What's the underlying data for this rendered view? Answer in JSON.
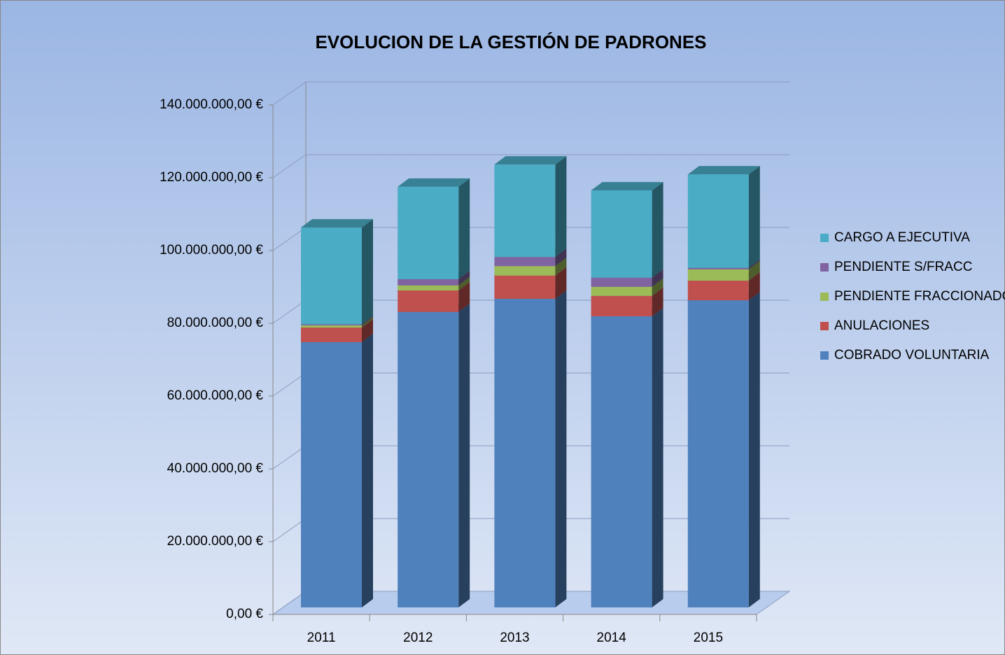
{
  "chart_data": {
    "type": "bar3d_stacked",
    "title": "EVOLUCION DE LA GESTIÓN DE PADRONES",
    "categories": [
      "2011",
      "2012",
      "2013",
      "2014",
      "2015"
    ],
    "series": [
      {
        "name": "COBRADO VOLUNTARIA",
        "color": "#4f81bd",
        "values": [
          72900000,
          81200000,
          84800000,
          80000000,
          84400000
        ]
      },
      {
        "name": "ANULACIONES",
        "color": "#c0504d",
        "values": [
          4000000,
          5900000,
          6400000,
          5600000,
          5400000
        ]
      },
      {
        "name": "PENDIENTE FRACCIONADO",
        "color": "#9bbb59",
        "values": [
          600000,
          1400000,
          2600000,
          2500000,
          3100000
        ]
      },
      {
        "name": "PENDIENTE S/FRACC",
        "color": "#8064a2",
        "values": [
          300000,
          1700000,
          2500000,
          2500000,
          400000
        ]
      },
      {
        "name": "CARGO A EJECUTIVA",
        "color": "#4bacc6",
        "values": [
          26600000,
          25400000,
          25400000,
          24000000,
          25700000
        ]
      }
    ],
    "ylim": [
      0,
      140000000
    ],
    "yticks": [
      {
        "value": 0,
        "label": "0,00 €"
      },
      {
        "value": 20000000,
        "label": "20.000.000,00 €"
      },
      {
        "value": 40000000,
        "label": "40.000.000,00 €"
      },
      {
        "value": 60000000,
        "label": "60.000.000,00 €"
      },
      {
        "value": 80000000,
        "label": "80.000.000,00 €"
      },
      {
        "value": 100000000,
        "label": "100.000.000,00 €"
      },
      {
        "value": 120000000,
        "label": "120.000.000,00 €"
      },
      {
        "value": 140000000,
        "label": "140.000.000,00 €"
      }
    ],
    "grid": true,
    "legend": "right"
  }
}
